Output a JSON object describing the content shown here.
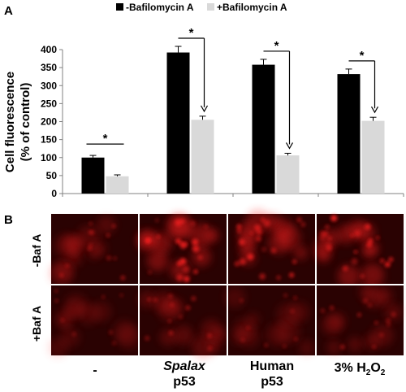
{
  "panels": {
    "a": "A",
    "b": "B"
  },
  "legend": {
    "off": "-Bafilomycin A",
    "on": "+Bafilomycin A"
  },
  "colors": {
    "off": "#000000",
    "on": "#d9d9d9",
    "axis": "#808080",
    "micro_bg": "#2a0202",
    "micro_spot": "#ff2020"
  },
  "chart_data": {
    "type": "bar",
    "categories": [
      "-",
      "Spalax p53",
      "Human p53",
      "3% H2O2"
    ],
    "series": [
      {
        "name": "-Bafilomycin A",
        "values": [
          100,
          392,
          358,
          332
        ],
        "errors": [
          6,
          17,
          15,
          14
        ]
      },
      {
        "name": "+Bafilomycin A",
        "values": [
          48,
          205,
          106,
          202
        ],
        "errors": [
          4,
          10,
          6,
          10
        ]
      }
    ],
    "ylabel_line1": "Cell fluorescence",
    "ylabel_line2": "(% of control)",
    "ylim": [
      0,
      400
    ],
    "yticks": [
      0,
      50,
      100,
      150,
      200,
      250,
      300,
      350,
      400
    ],
    "significance": [
      "*",
      "*",
      "*",
      "*"
    ]
  },
  "micrographs": {
    "row_labels": [
      "-Baf A",
      "+Baf A"
    ],
    "columns": [
      {
        "line1": "-",
        "line2": "",
        "italic": false
      },
      {
        "line1": "Spalax",
        "line2": "p53",
        "italic": true
      },
      {
        "line1": "Human",
        "line2": "p53",
        "italic": false
      },
      {
        "line1": "3% H",
        "sub1": "2",
        "mid": "O",
        "sub2": "2",
        "line2": "",
        "italic": false
      }
    ],
    "brightness": [
      [
        0.35,
        1.0,
        0.85,
        0.95
      ],
      [
        0.15,
        0.4,
        0.2,
        0.35
      ]
    ]
  }
}
